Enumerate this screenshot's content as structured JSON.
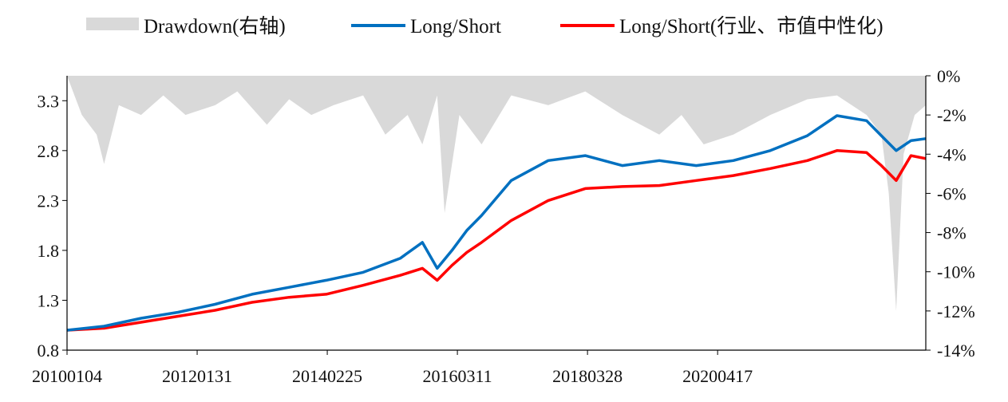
{
  "chart_data": {
    "type": "line",
    "legend": {
      "placement": "top",
      "entries": [
        {
          "label": "Drawdown(右轴)",
          "kind": "area",
          "color": "#d9d9d9"
        },
        {
          "label": "Long/Short",
          "kind": "line",
          "color": "#0070c0"
        },
        {
          "label": "Long/Short(行业、市值中性化)",
          "kind": "line",
          "color": "#ff0000"
        }
      ]
    },
    "x_ticks": [
      "20100104",
      "20120131",
      "20140225",
      "20160311",
      "20180328",
      "20200417"
    ],
    "y_left": {
      "ticks": [
        "0.8",
        "1.3",
        "1.8",
        "2.3",
        "2.8",
        "3.3"
      ],
      "range": [
        0.8,
        3.55
      ]
    },
    "y_right": {
      "ticks": [
        "0%",
        "-2%",
        "-4%",
        "-6%",
        "-8%",
        "-10%",
        "-12%",
        "-14%"
      ],
      "range": [
        -14,
        0
      ]
    },
    "x_range": [
      2010.0,
      2021.6
    ],
    "series": [
      {
        "name": "Long/Short",
        "axis": "left",
        "x": [
          2010.0,
          2010.5,
          2011.0,
          2011.5,
          2012.0,
          2012.5,
          2013.0,
          2013.5,
          2014.0,
          2014.5,
          2014.8,
          2015.0,
          2015.2,
          2015.4,
          2015.6,
          2016.0,
          2016.5,
          2017.0,
          2017.5,
          2018.0,
          2018.5,
          2019.0,
          2019.5,
          2020.0,
          2020.4,
          2020.8,
          2021.0,
          2021.2,
          2021.4,
          2021.6
        ],
        "y": [
          1.0,
          1.04,
          1.12,
          1.18,
          1.26,
          1.36,
          1.43,
          1.5,
          1.58,
          1.72,
          1.88,
          1.62,
          1.8,
          2.0,
          2.15,
          2.5,
          2.7,
          2.75,
          2.65,
          2.7,
          2.65,
          2.7,
          2.8,
          2.95,
          3.15,
          3.1,
          2.95,
          2.8,
          2.9,
          2.92
        ]
      },
      {
        "name": "Long/Short(行业、市值中性化)",
        "axis": "left",
        "x": [
          2010.0,
          2010.5,
          2011.0,
          2011.5,
          2012.0,
          2012.5,
          2013.0,
          2013.5,
          2014.0,
          2014.5,
          2014.8,
          2015.0,
          2015.2,
          2015.4,
          2015.6,
          2016.0,
          2016.5,
          2017.0,
          2017.5,
          2018.0,
          2018.5,
          2019.0,
          2019.5,
          2020.0,
          2020.4,
          2020.8,
          2021.0,
          2021.2,
          2021.4,
          2021.6
        ],
        "y": [
          1.0,
          1.02,
          1.08,
          1.14,
          1.2,
          1.28,
          1.33,
          1.36,
          1.45,
          1.55,
          1.62,
          1.5,
          1.65,
          1.78,
          1.88,
          2.1,
          2.3,
          2.42,
          2.44,
          2.45,
          2.5,
          2.55,
          2.62,
          2.7,
          2.8,
          2.78,
          2.65,
          2.5,
          2.75,
          2.72
        ]
      },
      {
        "name": "Drawdown(右轴)",
        "axis": "right",
        "x": [
          2010.0,
          2010.2,
          2010.4,
          2010.5,
          2010.7,
          2011.0,
          2011.3,
          2011.6,
          2012.0,
          2012.3,
          2012.7,
          2013.0,
          2013.3,
          2013.6,
          2014.0,
          2014.3,
          2014.6,
          2014.8,
          2015.0,
          2015.1,
          2015.3,
          2015.6,
          2016.0,
          2016.5,
          2017.0,
          2017.5,
          2018.0,
          2018.3,
          2018.6,
          2019.0,
          2019.5,
          2020.0,
          2020.4,
          2020.8,
          2021.0,
          2021.1,
          2021.2,
          2021.3,
          2021.45,
          2021.6
        ],
        "y": [
          0,
          -2.0,
          -3.0,
          -4.5,
          -1.5,
          -2.0,
          -1.0,
          -2.0,
          -1.5,
          -0.8,
          -2.5,
          -1.2,
          -2.0,
          -1.5,
          -1.0,
          -3.0,
          -2.0,
          -3.5,
          -1.0,
          -7.0,
          -2.0,
          -3.5,
          -1.0,
          -1.5,
          -0.8,
          -2.0,
          -3.0,
          -2.0,
          -3.5,
          -3.0,
          -2.0,
          -1.2,
          -1.0,
          -2.0,
          -3.0,
          -6.0,
          -12.0,
          -4.0,
          -2.0,
          -1.5
        ]
      }
    ]
  }
}
